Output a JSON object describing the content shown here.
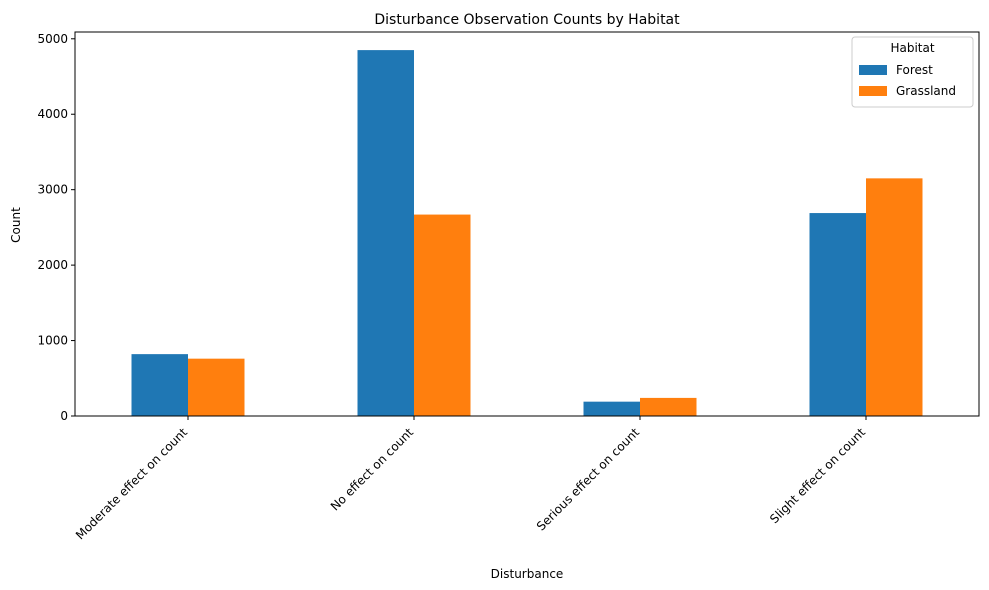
{
  "chart_data": {
    "type": "bar",
    "title": "Disturbance Observation Counts by Habitat",
    "xlabel": "Disturbance",
    "ylabel": "Count",
    "categories": [
      "Moderate effect on count",
      "No effect on count",
      "Serious effect on count",
      "Slight effect on count"
    ],
    "series": [
      {
        "name": "Forest",
        "color": "#1f77b4",
        "values": [
          820,
          4850,
          190,
          2690
        ]
      },
      {
        "name": "Grassland",
        "color": "#ff7f0e",
        "values": [
          760,
          2670,
          240,
          3150
        ]
      }
    ],
    "ylim": [
      0,
      5090
    ],
    "yticks": [
      0,
      1000,
      2000,
      3000,
      4000,
      5000
    ],
    "yticklabels": [
      "0",
      "1000",
      "2000",
      "3000",
      "4000",
      "5000"
    ],
    "grid": false,
    "legend": {
      "title": "Habitat",
      "position": "top-right"
    }
  }
}
